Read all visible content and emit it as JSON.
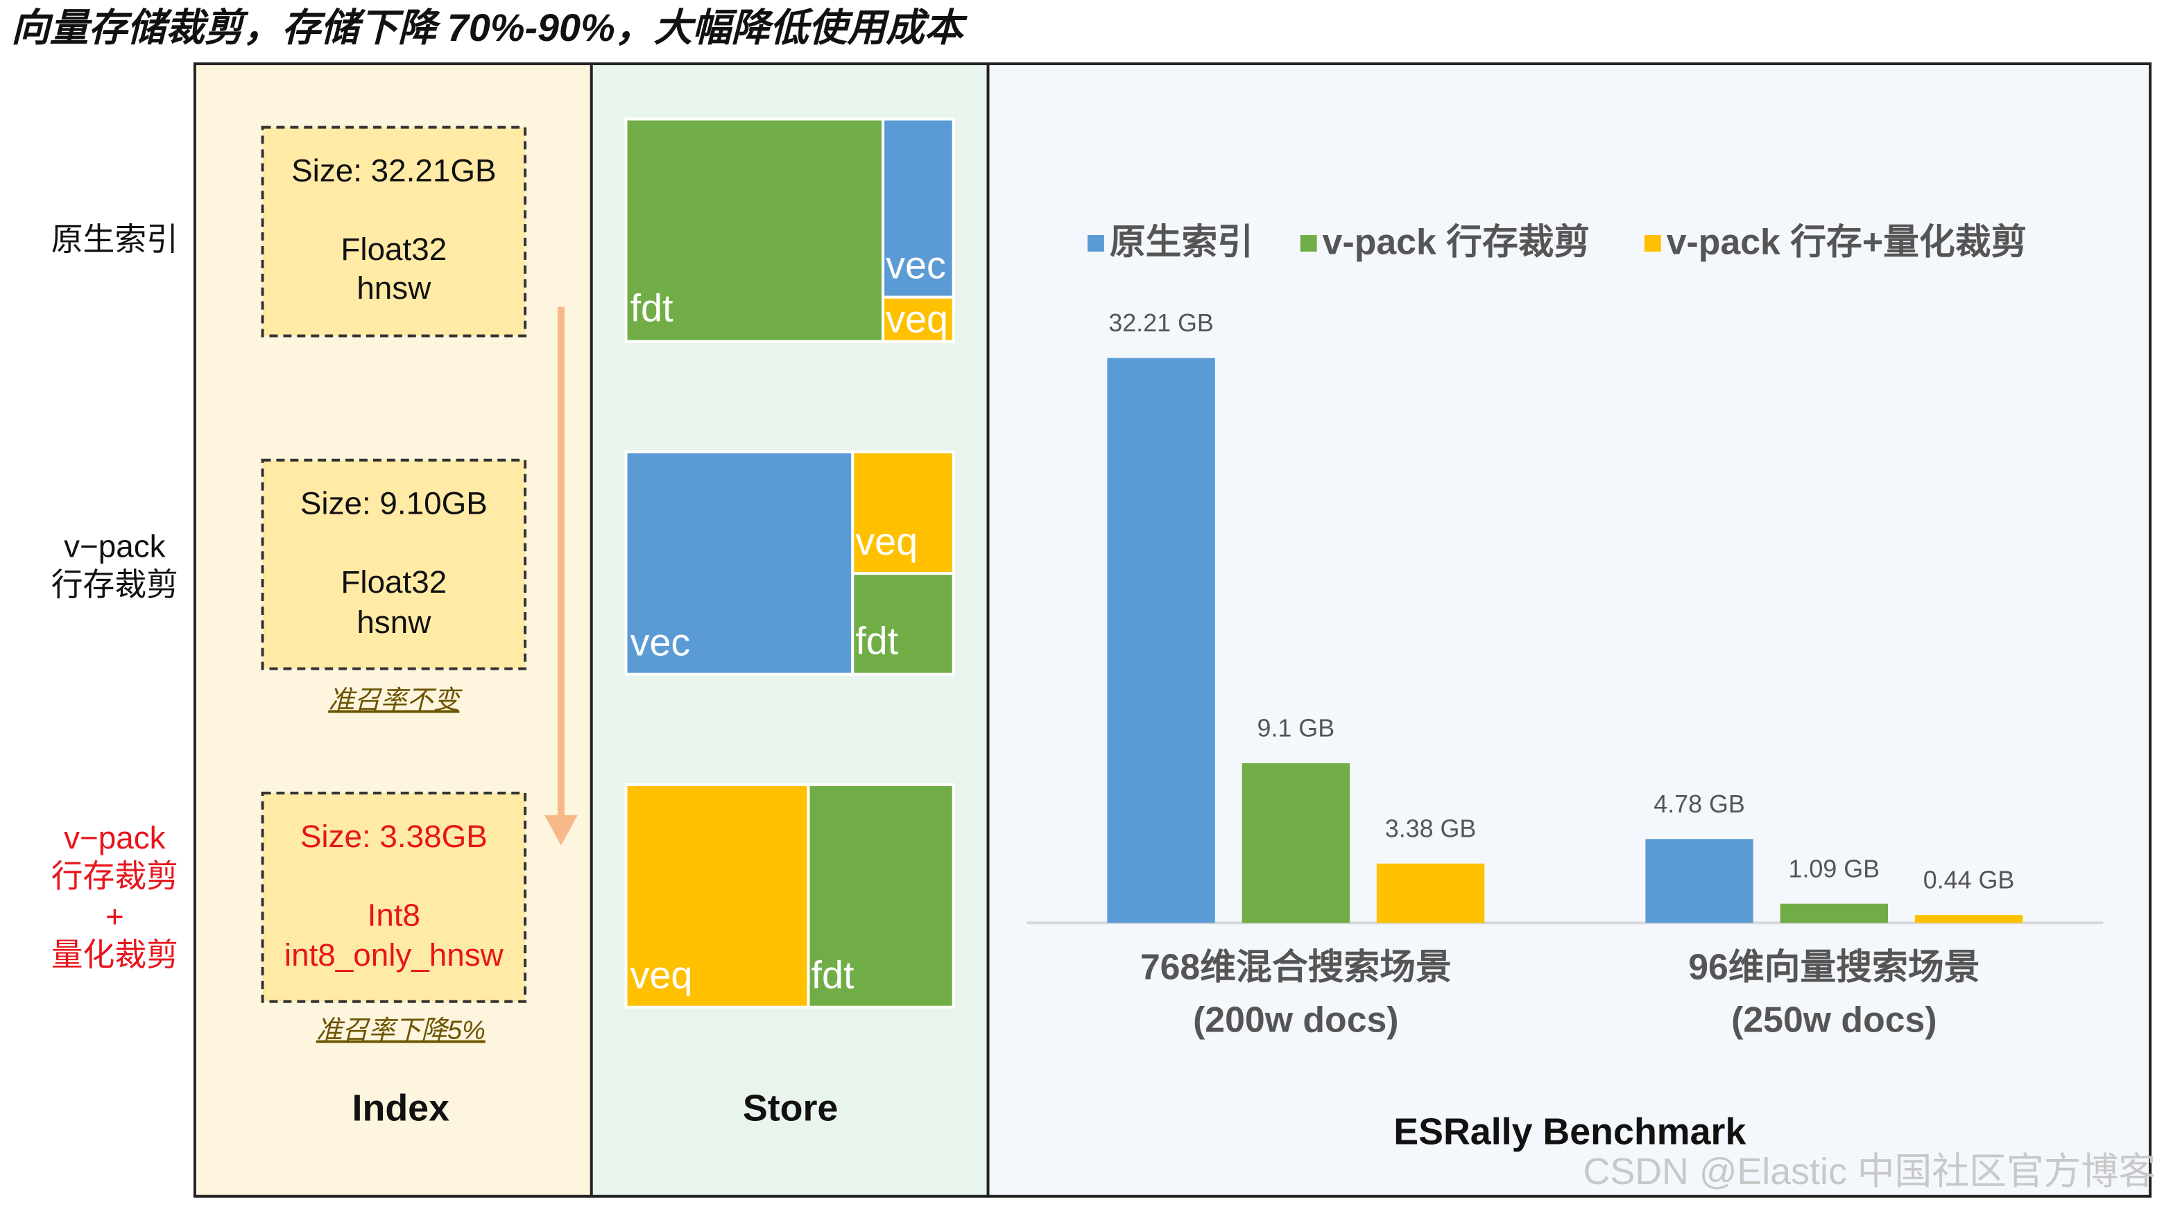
{
  "title": "向量存储裁剪，存储下降 70%-90%，大幅降低使用成本",
  "rows": [
    {
      "label": [
        "原生索引"
      ],
      "size": "Size: 32.21GB",
      "format": "Float32",
      "algorithm": "hnsw"
    },
    {
      "label": [
        "v−pack",
        "行存裁剪"
      ],
      "size": "Size: 9.10GB",
      "format": "Float32",
      "algorithm": "hsnw",
      "note": "准召率不变"
    },
    {
      "label": [
        "v−pack",
        "行存裁剪",
        "+",
        "量化裁剪"
      ],
      "size": "Size: 3.38GB",
      "format": "Int8",
      "algorithm": "int8_only_hnsw",
      "note": "准召率下降5%"
    }
  ],
  "store": [
    {
      "labels": [
        "fdt",
        "vec",
        "veq"
      ]
    },
    {
      "labels": [
        "vec",
        "veq",
        "fdt"
      ]
    },
    {
      "labels": [
        "veq",
        "fdt"
      ]
    }
  ],
  "panels": {
    "index": "Index",
    "store": "Store"
  },
  "watermark": "CSDN @Elastic 中国社区官方博客",
  "chart_data": {
    "type": "bar",
    "title": "ESRally Benchmark",
    "categories": [
      [
        "768维混合搜索场景",
        "(200w docs)"
      ],
      [
        "96维向量搜索场景",
        "(250w docs)"
      ]
    ],
    "series": [
      {
        "name": "原生索引",
        "color": "#5b9bd5",
        "values": [
          32.21,
          4.78
        ],
        "value_labels": [
          "32.21 GB",
          "4.78 GB"
        ]
      },
      {
        "name": "v-pack 行存裁剪",
        "color": "#70ad47",
        "values": [
          9.1,
          1.09
        ],
        "value_labels": [
          "9.1 GB",
          "1.09 GB"
        ]
      },
      {
        "name": "v-pack 行存+量化裁剪",
        "color": "#ffc000",
        "values": [
          3.38,
          0.44
        ],
        "value_labels": [
          "3.38 GB",
          "0.44 GB"
        ]
      }
    ]
  }
}
